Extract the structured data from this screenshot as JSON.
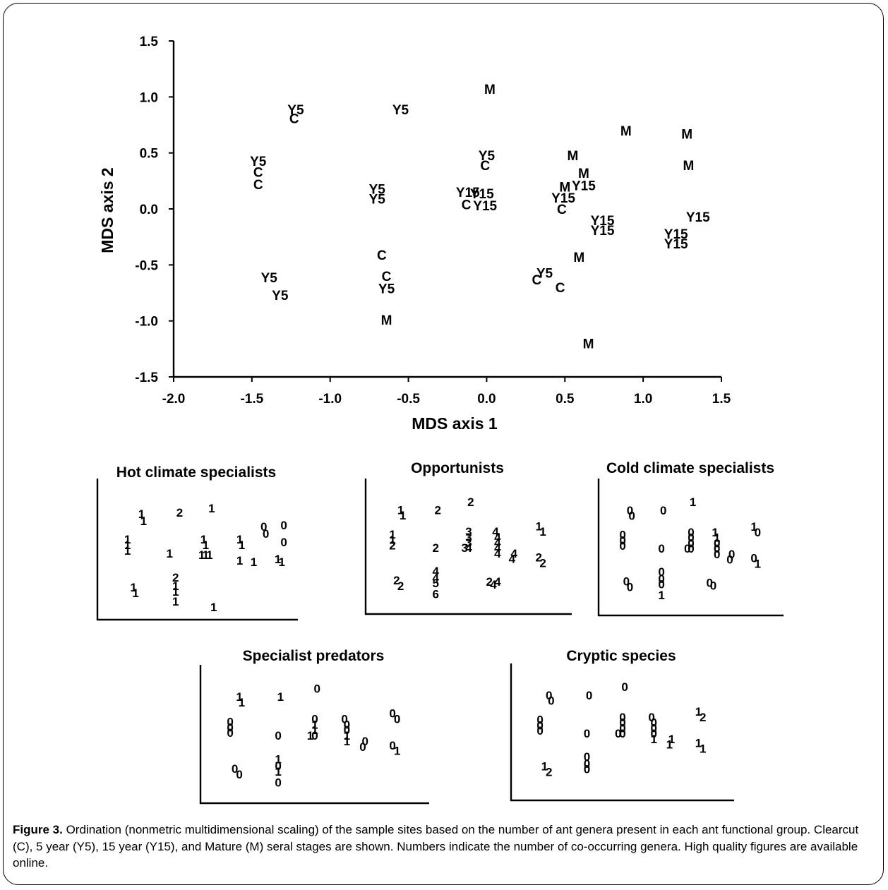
{
  "chart_data": [
    {
      "type": "scatter",
      "xlabel": "MDS axis 1",
      "ylabel": "MDS axis 2",
      "xlim": [
        -2.0,
        1.5
      ],
      "ylim": [
        -1.5,
        1.5
      ],
      "xticks": [
        "-2.0",
        "-1.5",
        "-1.0",
        "-0.5",
        "0.0",
        "0.5",
        "1.0",
        "1.5"
      ],
      "yticks": [
        "1.5",
        "1.0",
        "0.5",
        "0.0",
        "-0.5",
        "-1.0",
        "-1.5"
      ],
      "grid": false,
      "points": [
        {
          "label": "M",
          "x": 0.02,
          "y": 1.07
        },
        {
          "label": "Y5",
          "x": -1.22,
          "y": 0.89
        },
        {
          "label": "C",
          "x": -1.23,
          "y": 0.81
        },
        {
          "label": "Y5",
          "x": -0.55,
          "y": 0.89
        },
        {
          "label": "M",
          "x": 0.89,
          "y": 0.7
        },
        {
          "label": "M",
          "x": 1.28,
          "y": 0.67
        },
        {
          "label": "Y5",
          "x": -1.46,
          "y": 0.43
        },
        {
          "label": "C",
          "x": -1.46,
          "y": 0.33
        },
        {
          "label": "C",
          "x": -1.46,
          "y": 0.22
        },
        {
          "label": "Y5",
          "x": 0.0,
          "y": 0.48
        },
        {
          "label": "C",
          "x": -0.01,
          "y": 0.39
        },
        {
          "label": "M",
          "x": 0.55,
          "y": 0.48
        },
        {
          "label": "M",
          "x": 1.29,
          "y": 0.39
        },
        {
          "label": "M",
          "x": 0.62,
          "y": 0.32
        },
        {
          "label": "M",
          "x": 0.5,
          "y": 0.2
        },
        {
          "label": "Y15",
          "x": 0.62,
          "y": 0.21
        },
        {
          "label": "Y5",
          "x": -0.7,
          "y": 0.18
        },
        {
          "label": "Y5",
          "x": -0.7,
          "y": 0.09
        },
        {
          "label": "Y15",
          "x": -0.12,
          "y": 0.15
        },
        {
          "label": "Y15",
          "x": -0.03,
          "y": 0.14
        },
        {
          "label": "C",
          "x": -0.13,
          "y": 0.04
        },
        {
          "label": "Y15",
          "x": -0.01,
          "y": 0.03
        },
        {
          "label": "Y15",
          "x": 0.49,
          "y": 0.1
        },
        {
          "label": "C",
          "x": 0.48,
          "y": 0.0
        },
        {
          "label": "Y15",
          "x": 0.74,
          "y": -0.1
        },
        {
          "label": "Y15",
          "x": 0.74,
          "y": -0.19
        },
        {
          "label": "Y15",
          "x": 1.35,
          "y": -0.07
        },
        {
          "label": "Y15",
          "x": 1.21,
          "y": -0.22
        },
        {
          "label": "Y15",
          "x": 1.21,
          "y": -0.31
        },
        {
          "label": "C",
          "x": -0.67,
          "y": -0.41
        },
        {
          "label": "M",
          "x": 0.59,
          "y": -0.43
        },
        {
          "label": "Y5",
          "x": -1.39,
          "y": -0.61
        },
        {
          "label": "Y5",
          "x": -1.32,
          "y": -0.77
        },
        {
          "label": "C",
          "x": -0.64,
          "y": -0.6
        },
        {
          "label": "Y5",
          "x": -0.64,
          "y": -0.71
        },
        {
          "label": "Y5",
          "x": 0.37,
          "y": -0.57
        },
        {
          "label": "C",
          "x": 0.32,
          "y": -0.63
        },
        {
          "label": "C",
          "x": 0.47,
          "y": -0.7
        },
        {
          "label": "M",
          "x": -0.64,
          "y": -0.99
        },
        {
          "label": "M",
          "x": 0.65,
          "y": -1.2
        }
      ]
    },
    {
      "type": "scatter",
      "title": "Hot climate specialists",
      "points_labels": [
        "1",
        "1",
        "2",
        "1",
        "1",
        "1",
        "1",
        "1",
        "1",
        "1",
        "1",
        "1",
        "1",
        "1",
        "1",
        "0",
        "0",
        "0",
        "0",
        "1",
        "1",
        "1",
        "1",
        "1",
        "1",
        "2",
        "1",
        "1",
        "1",
        "1"
      ]
    },
    {
      "type": "scatter",
      "title": "Opportunists",
      "points_labels": [
        "1",
        "1",
        "2",
        "2",
        "1",
        "1",
        "2",
        "2",
        "3",
        "3",
        "3",
        "3",
        "4",
        "4",
        "4",
        "4",
        "4",
        "4",
        "4",
        "4",
        "1",
        "1",
        "2",
        "2",
        "2",
        "2",
        "4",
        "4",
        "5",
        "6",
        "2",
        "4",
        "4"
      ]
    },
    {
      "type": "scatter",
      "title": "Cold climate specialists",
      "points_labels": [
        "0",
        "0",
        "0",
        "1",
        "0",
        "0",
        "0",
        "0",
        "0",
        "0",
        "0",
        "0",
        "0",
        "1",
        "1",
        "0",
        "0",
        "0",
        "0",
        "0",
        "1",
        "0",
        "0",
        "1",
        "0",
        "0",
        "0",
        "0",
        "0",
        "1",
        "0",
        "0"
      ]
    },
    {
      "type": "scatter",
      "title": "Specialist predators",
      "points_labels": [
        "1",
        "1",
        "1",
        "0",
        "0",
        "0",
        "0",
        "0",
        "0",
        "1",
        "1",
        "1",
        "0",
        "0",
        "0",
        "0",
        "1",
        "1",
        "0",
        "0",
        "0",
        "0",
        "0",
        "1",
        "0",
        "0",
        "1",
        "0",
        "1",
        "0"
      ]
    },
    {
      "type": "scatter",
      "title": "Cryptic species",
      "points_labels": [
        "0",
        "0",
        "0",
        "0",
        "0",
        "0",
        "0",
        "0",
        "0",
        "0",
        "0",
        "0",
        "0",
        "0",
        "0",
        "0",
        "0",
        "1",
        "1",
        "1",
        "1",
        "2",
        "1",
        "1",
        "1",
        "2",
        "0",
        "0",
        "0"
      ]
    }
  ],
  "caption": {
    "label": "Figure 3.",
    "text": " Ordination (nonmetric multidimensional scaling) of the sample sites based on the number of ant genera present in each ant functional group. Clearcut (C), 5 year (Y5), 15 year (Y15), and Mature (M) seral stages are shown. Numbers indicate the number of co-occurring genera. High quality figures are available online."
  }
}
